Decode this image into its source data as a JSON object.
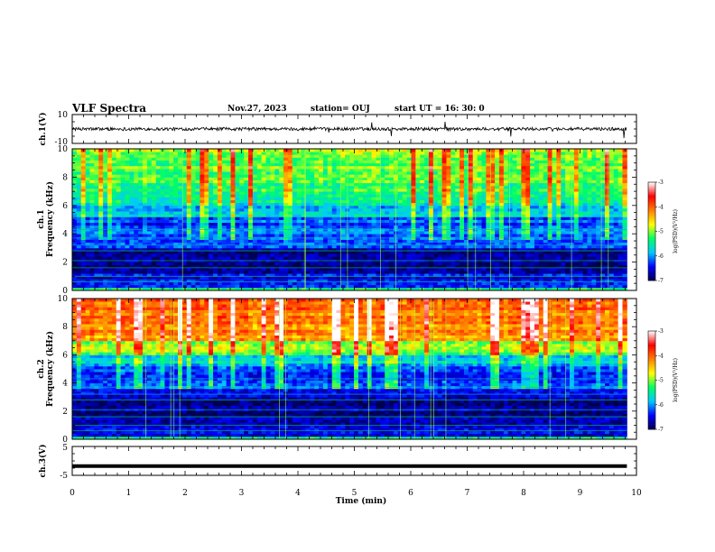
{
  "header": {
    "title": "VLF Spectra",
    "date": "Nov.27, 2023",
    "station": "station= OUJ",
    "start": "start  UT  =   16: 30: 0"
  },
  "chart_data": [
    {
      "type": "line",
      "panel": "ch1-waveform",
      "ylabel": "ch.1(V)",
      "ylim": [
        -10,
        10
      ],
      "yticks": [
        "10",
        "-10"
      ],
      "xlim": [
        0,
        10
      ],
      "baseline_level": 0,
      "color": "#000000"
    },
    {
      "type": "heatmap",
      "panel": "ch1-spectrogram",
      "ylabel": "ch.1\nFrequency (kHz)",
      "ylabel_line1": "ch.1",
      "ylabel_line2": "Frequency (kHz)",
      "ylim": [
        0,
        10
      ],
      "yticks": [
        "0",
        "2",
        "4",
        "6",
        "8",
        "10"
      ],
      "xlim": [
        0,
        10
      ],
      "data_end_min": 9.83,
      "colorbar": {
        "label": "log(PSD)(V²/Hz)",
        "range": [
          -7,
          -3
        ],
        "ticks": [
          "-3",
          "-4",
          "-5",
          "-6",
          "-7"
        ],
        "colors": [
          "#00004a",
          "#0000ff",
          "#00c8ff",
          "#00ff64",
          "#ffff00",
          "#ff8000",
          "#ff0000",
          "#ffffff"
        ]
      }
    },
    {
      "type": "heatmap",
      "panel": "ch2-spectrogram",
      "ylabel": "ch.2\nFrequency (kHz)",
      "ylabel_line1": "ch.2",
      "ylabel_line2": "Frequency (kHz)",
      "ylim": [
        0,
        10
      ],
      "yticks": [
        "0",
        "2",
        "4",
        "6",
        "8",
        "10"
      ],
      "xlim": [
        0,
        10
      ],
      "data_end_min": 9.83,
      "colorbar": {
        "label": "log(PSD)(V²/Hz)",
        "range": [
          -7,
          -3
        ],
        "ticks": [
          "-3",
          "-4",
          "-5",
          "-6",
          "-7"
        ],
        "colors": [
          "#00004a",
          "#0000ff",
          "#00c8ff",
          "#00ff64",
          "#ffff00",
          "#ff8000",
          "#ff0000",
          "#ffffff"
        ]
      }
    },
    {
      "type": "line",
      "panel": "ch3-waveform",
      "ylabel": "ch.3(V)",
      "ylim": [
        -5,
        5
      ],
      "yticks": [
        "5",
        "-5"
      ],
      "xlim": [
        0,
        10
      ],
      "baseline_level": -1.8,
      "color": "#000000"
    }
  ],
  "xaxis": {
    "label": "Time (min)",
    "ticks": [
      "0",
      "1",
      "2",
      "3",
      "4",
      "5",
      "6",
      "7",
      "8",
      "9",
      "10"
    ]
  }
}
